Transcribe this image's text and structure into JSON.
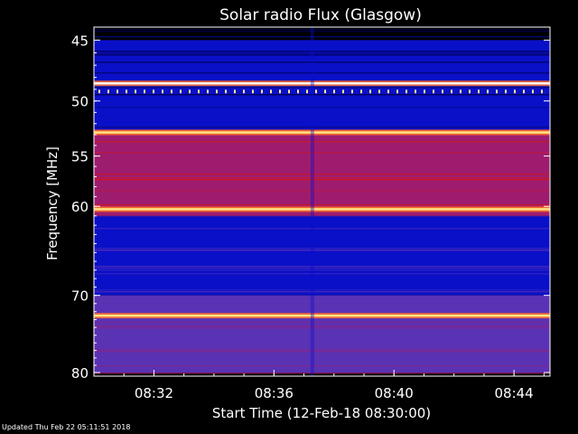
{
  "chart_data": {
    "type": "heatmap",
    "title": "Solar radio Flux (Glasgow)",
    "xlabel": "Start Time (12-Feb-18 08:30:00)",
    "ylabel": "Frequency [MHz]",
    "x_ticks": [
      "08:32",
      "08:36",
      "08:40",
      "08:44"
    ],
    "y_ticks": [
      "45",
      "50",
      "55",
      "60",
      "70",
      "80"
    ],
    "y_axis_scale": "log",
    "colormap": [
      "#000050",
      "#0a10c8",
      "#5a32b4",
      "#9e1c6e",
      "#d2161e",
      "#ff6e28",
      "#ffe682",
      "#ffffff"
    ],
    "bright_bands_mhz": [
      48.5,
      52.8,
      60.3,
      72.5
    ],
    "background_bands_mhz": [
      {
        "from": 45,
        "to": 52.5,
        "level": "low"
      },
      {
        "from": 52.5,
        "to": 61,
        "level": "high"
      },
      {
        "from": 61,
        "to": 70,
        "level": "low"
      },
      {
        "from": 70,
        "to": 80,
        "level": "medium"
      }
    ]
  },
  "footer": {
    "updated": "Updated Thu Feb 22 05:11:51 2018"
  }
}
